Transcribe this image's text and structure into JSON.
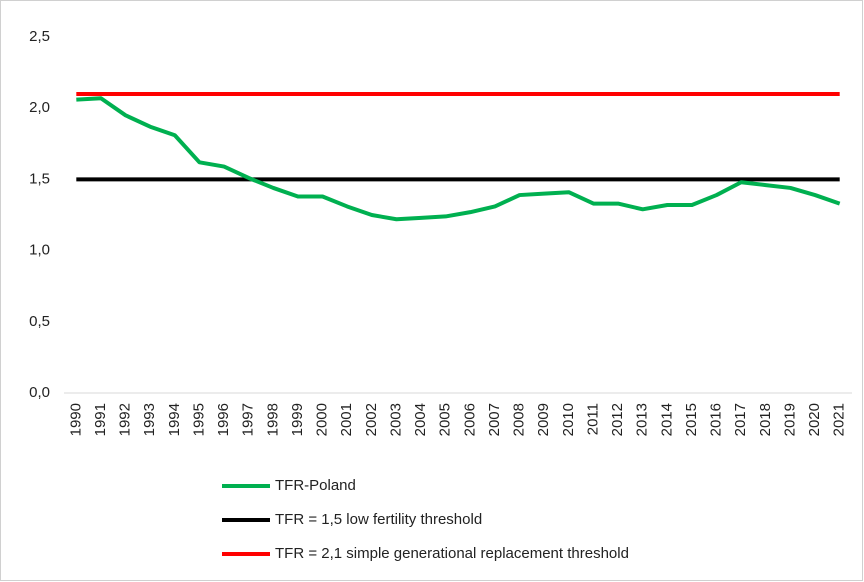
{
  "chart_data": {
    "type": "line",
    "categories": [
      "1990",
      "1991",
      "1992",
      "1993",
      "1994",
      "1995",
      "1996",
      "1997",
      "1998",
      "1999",
      "2000",
      "2001",
      "2002",
      "2003",
      "2004",
      "2005",
      "2006",
      "2007",
      "2008",
      "2009",
      "2010",
      "2011",
      "2012",
      "2013",
      "2014",
      "2015",
      "2016",
      "2017",
      "2018",
      "2019",
      "2020",
      "2021"
    ],
    "series": [
      {
        "name": "TFR-Poland",
        "color": "#00b050",
        "values": [
          2.06,
          2.07,
          1.95,
          1.87,
          1.81,
          1.62,
          1.59,
          1.51,
          1.44,
          1.38,
          1.38,
          1.31,
          1.25,
          1.22,
          1.23,
          1.24,
          1.27,
          1.31,
          1.39,
          1.4,
          1.41,
          1.33,
          1.33,
          1.29,
          1.32,
          1.32,
          1.39,
          1.48,
          1.46,
          1.44,
          1.39,
          1.33
        ]
      },
      {
        "name": "TFR = 1,5 low fertility threshold",
        "color": "#000000",
        "values": [
          1.5,
          1.5,
          1.5,
          1.5,
          1.5,
          1.5,
          1.5,
          1.5,
          1.5,
          1.5,
          1.5,
          1.5,
          1.5,
          1.5,
          1.5,
          1.5,
          1.5,
          1.5,
          1.5,
          1.5,
          1.5,
          1.5,
          1.5,
          1.5,
          1.5,
          1.5,
          1.5,
          1.5,
          1.5,
          1.5,
          1.5,
          1.5
        ]
      },
      {
        "name": "TFR = 2,1 simple generational replacement threshold",
        "color": "#ff0000",
        "values": [
          2.1,
          2.1,
          2.1,
          2.1,
          2.1,
          2.1,
          2.1,
          2.1,
          2.1,
          2.1,
          2.1,
          2.1,
          2.1,
          2.1,
          2.1,
          2.1,
          2.1,
          2.1,
          2.1,
          2.1,
          2.1,
          2.1,
          2.1,
          2.1,
          2.1,
          2.1,
          2.1,
          2.1,
          2.1,
          2.1,
          2.1,
          2.1
        ]
      }
    ],
    "ylim": [
      0,
      2.5
    ],
    "yticks": [
      {
        "value": 0,
        "label": "0,0"
      },
      {
        "value": 0.5,
        "label": "0,5"
      },
      {
        "value": 1,
        "label": "1,0"
      },
      {
        "value": 1.5,
        "label": "1,5"
      },
      {
        "value": 2,
        "label": "2,0"
      },
      {
        "value": 2.5,
        "label": "2,5"
      }
    ],
    "grid": false,
    "legend": "bottom"
  }
}
